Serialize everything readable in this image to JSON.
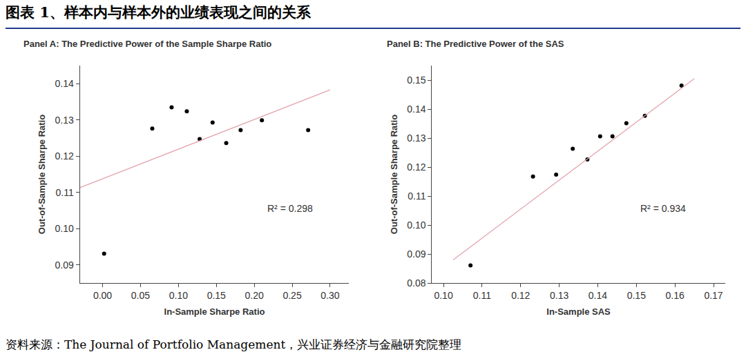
{
  "title": "图表 1、样本内与样本外的业绩表现之间的关系",
  "source": "资料来源：The Journal of Portfolio Management，兴业证券经济与金融研究院整理",
  "chart_data": [
    {
      "type": "scatter",
      "title": "Panel A: The Predictive Power of the Sample Sharpe Ratio",
      "x_label": "In-Sample Sharpe Ratio",
      "y_label": "Out-of-Sample Sharpe Ratio",
      "annotations": [
        "R² = 0.298"
      ],
      "xlim": [
        -0.03,
        0.325
      ],
      "ylim": [
        0.085,
        0.145
      ],
      "xticks": [
        {
          "value": 0,
          "label": "0.00"
        },
        0.05,
        {
          "value": 0.1,
          "label": "0.10"
        },
        0.15,
        {
          "value": 0.2,
          "label": "0.20"
        },
        0.25,
        {
          "value": 0.3,
          "label": "0.30"
        }
      ],
      "yticks": [
        0.09,
        {
          "value": 0.1,
          "label": "0.10"
        },
        0.11,
        0.12,
        0.13,
        0.14
      ],
      "grid": false,
      "series": [
        {
          "type": "scatter",
          "marker": "circle",
          "color": "#000000",
          "x": [
            0.002,
            0.0655,
            0.091,
            0.111,
            0.128,
            0.145,
            0.163,
            0.182,
            0.21,
            0.271
          ],
          "values": [
            0.0931,
            0.1276,
            0.1335,
            0.1324,
            0.1247,
            0.1293,
            0.1236,
            0.1272,
            0.1299,
            0.1272
          ]
        },
        {
          "type": "line",
          "line_style": "solid",
          "color": "#e3a3ab",
          "x": [
            -0.03,
            0.3
          ],
          "values": [
            0.1113,
            0.1383
          ]
        }
      ]
    },
    {
      "type": "scatter",
      "title": "Panel B: The Predictive Power of the SAS",
      "x_label": "In-Sample SAS",
      "y_label": "Out-of-Sample Sharpe Ratio",
      "annotations": [
        "R² = 0.934"
      ],
      "xlim": [
        0.097,
        0.173
      ],
      "ylim": [
        0.08,
        0.155
      ],
      "xticks": [
        {
          "value": 0.1,
          "label": "0.10"
        },
        0.11,
        0.12,
        0.13,
        0.14,
        0.15,
        0.16,
        0.17
      ],
      "yticks": [
        0.08,
        0.09,
        {
          "value": 0.1,
          "label": "0.10"
        },
        0.11,
        0.12,
        0.13,
        0.14,
        0.15
      ],
      "grid": false,
      "series": [
        {
          "type": "scatter",
          "marker": "circle",
          "color": "#000000",
          "x": [
            0.107,
            0.1232,
            0.1292,
            0.1335,
            0.1373,
            0.1406,
            0.1438,
            0.1474,
            0.1522,
            0.1617
          ],
          "values": [
            0.0861,
            0.1167,
            0.1174,
            0.1263,
            0.1226,
            0.1306,
            0.1306,
            0.1351,
            0.1377,
            0.1481
          ]
        },
        {
          "type": "line",
          "line_style": "solid",
          "color": "#e3a3ab",
          "x": [
            0.1025,
            0.165
          ],
          "values": [
            0.088,
            0.1505
          ]
        }
      ]
    }
  ]
}
